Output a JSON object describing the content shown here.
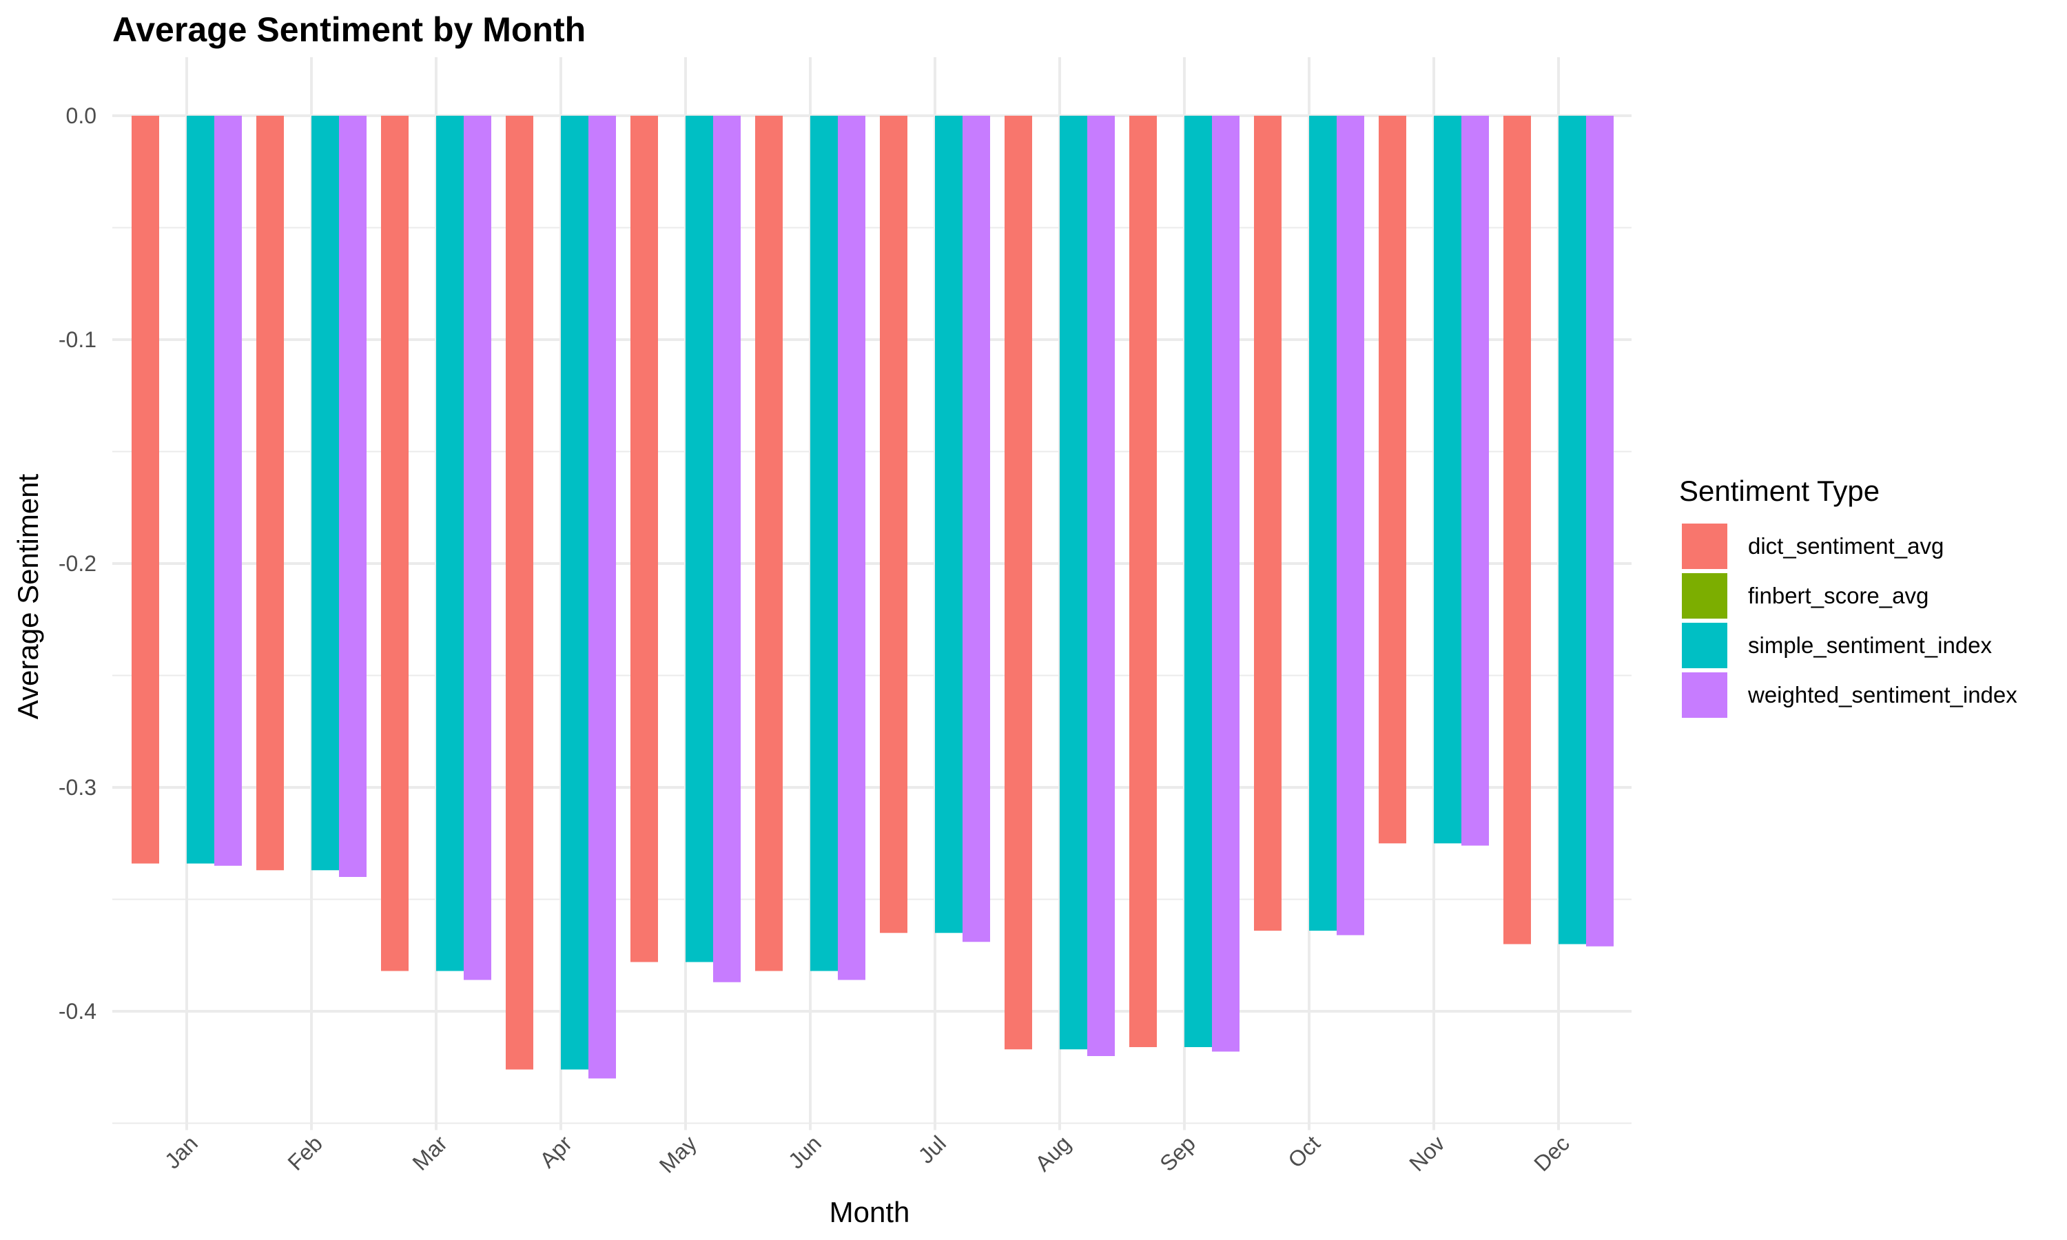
{
  "chart_data": {
    "type": "bar",
    "title": "Average Sentiment by Month",
    "xlabel": "Month",
    "ylabel": "Average Sentiment",
    "categories": [
      "Jan",
      "Feb",
      "Mar",
      "Apr",
      "May",
      "Jun",
      "Jul",
      "Aug",
      "Sep",
      "Oct",
      "Nov",
      "Dec"
    ],
    "ylim": [
      -0.45,
      0.0
    ],
    "yticks": [
      0.0,
      -0.1,
      -0.2,
      -0.3,
      -0.4
    ],
    "ytick_labels": [
      "0.0",
      "-0.1",
      "-0.2",
      "-0.3",
      "-0.4"
    ],
    "grid": true,
    "legend": {
      "title": "Sentiment Type",
      "position": "right"
    },
    "series": [
      {
        "name": "dict_sentiment_avg",
        "color": "#F8766D",
        "values": [
          -0.334,
          -0.337,
          -0.382,
          -0.426,
          -0.378,
          -0.382,
          -0.365,
          -0.417,
          -0.416,
          -0.364,
          -0.325,
          -0.37
        ]
      },
      {
        "name": "finbert_score_avg",
        "color": "#7CAE00",
        "values": [
          0,
          0,
          0,
          0,
          0,
          0,
          0,
          0,
          0,
          0,
          0,
          0
        ]
      },
      {
        "name": "simple_sentiment_index",
        "color": "#00BFC4",
        "values": [
          -0.334,
          -0.337,
          -0.382,
          -0.426,
          -0.378,
          -0.382,
          -0.365,
          -0.417,
          -0.416,
          -0.364,
          -0.325,
          -0.37
        ]
      },
      {
        "name": "weighted_sentiment_index",
        "color": "#C77CFF",
        "values": [
          -0.335,
          -0.34,
          -0.386,
          -0.43,
          -0.387,
          -0.386,
          -0.369,
          -0.42,
          -0.418,
          -0.366,
          -0.326,
          -0.371
        ]
      }
    ]
  }
}
